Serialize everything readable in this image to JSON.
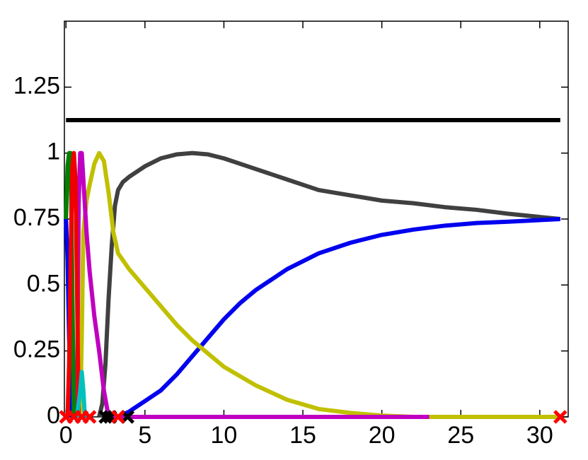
{
  "chart_data": {
    "type": "line",
    "xlim": [
      -0.1,
      31.8
    ],
    "ylim": [
      0,
      1.5
    ],
    "xticks": [
      0,
      5,
      10,
      15,
      20,
      25,
      30
    ],
    "yticks": [
      0,
      0.25,
      0.5,
      0.75,
      1,
      1.25
    ],
    "grid": false,
    "series": [
      {
        "color": "#000000",
        "marker": "none",
        "x": [
          0,
          31.3
        ],
        "values": [
          1.125,
          1.125
        ]
      },
      {
        "color": "#404040",
        "marker": "none",
        "x": [
          2.1,
          2.3,
          2.5,
          2.7,
          2.9,
          3.1,
          3.3,
          3.6,
          4,
          5,
          6,
          7,
          8,
          9,
          10,
          12,
          14,
          16,
          18,
          20,
          22,
          24,
          26,
          28,
          31.3
        ],
        "values": [
          0,
          0.05,
          0.2,
          0.45,
          0.65,
          0.8,
          0.86,
          0.89,
          0.91,
          0.95,
          0.98,
          0.995,
          1.0,
          0.995,
          0.98,
          0.94,
          0.9,
          0.86,
          0.84,
          0.82,
          0.81,
          0.795,
          0.785,
          0.77,
          0.75
        ]
      },
      {
        "color": "#0000ee",
        "marker": "none",
        "x": [
          0,
          0.1,
          0.2,
          0.35,
          3.3,
          3.3,
          4,
          5,
          6,
          7,
          8,
          9,
          10,
          11,
          12,
          14,
          16,
          18,
          20,
          22,
          24,
          26,
          28,
          31.3
        ],
        "values": [
          0.75,
          0.6,
          0.3,
          0,
          null,
          0,
          0.02,
          0.06,
          0.1,
          0.16,
          0.23,
          0.3,
          0.37,
          0.43,
          0.48,
          0.56,
          0.62,
          0.66,
          0.69,
          0.71,
          0.725,
          0.735,
          0.74,
          0.75
        ]
      },
      {
        "color": "#c0c000",
        "marker": "none",
        "x": [
          0.9,
          1.0,
          1.1,
          1.3,
          1.5,
          1.8,
          2.1,
          2.4,
          2.7,
          3.0,
          3.3,
          4,
          5,
          6,
          7,
          8,
          9,
          10,
          12,
          14,
          16,
          18,
          20,
          22,
          25,
          31.3
        ],
        "values": [
          0,
          0.3,
          0.7,
          0.82,
          0.88,
          0.96,
          1.0,
          0.97,
          0.85,
          0.7,
          0.62,
          0.56,
          0.49,
          0.42,
          0.35,
          0.29,
          0.24,
          0.19,
          0.12,
          0.065,
          0.03,
          0.015,
          0.005,
          0,
          0,
          0
        ]
      },
      {
        "color": "#c000c0",
        "marker": "none",
        "x": [
          0.7,
          0.8,
          0.9,
          1.0,
          1.1,
          1.3,
          1.5,
          1.8,
          2.1,
          2.4,
          2.7,
          5,
          10,
          15,
          20,
          23
        ],
        "values": [
          0,
          0.8,
          1.0,
          1.0,
          0.9,
          0.7,
          0.55,
          0.38,
          0.25,
          0.1,
          0,
          0,
          0,
          0,
          0,
          0
        ]
      },
      {
        "color": "#008000",
        "marker": "none",
        "x": [
          0,
          0.1,
          0.2,
          0.3,
          0.4,
          0.5
        ],
        "values": [
          0.75,
          0.95,
          1.0,
          1.0,
          0.5,
          0
        ]
      },
      {
        "color": "#ee0000",
        "marker": "none",
        "x": [
          0.1,
          0.2,
          0.3,
          0.4,
          0.5,
          0.6,
          0.7,
          0.8
        ],
        "values": [
          0,
          0.2,
          0.6,
          0.95,
          1.0,
          0.9,
          0.5,
          0
        ]
      },
      {
        "color": "#00c0c0",
        "marker": "none",
        "x": [
          0.7,
          0.9,
          1.0,
          1.1,
          1.2
        ],
        "values": [
          0,
          0.1,
          0.17,
          0.1,
          0
        ]
      },
      {
        "color": "#000000",
        "marker": "x",
        "x": [
          2.5,
          2.8,
          3.9
        ],
        "values": [
          0,
          0,
          0
        ]
      },
      {
        "color": "#ff0000",
        "marker": "x",
        "x": [
          0,
          0.5,
          1.0,
          1.5,
          3.3,
          31.3
        ],
        "values": [
          0,
          0,
          0,
          0,
          0,
          0
        ]
      }
    ]
  }
}
